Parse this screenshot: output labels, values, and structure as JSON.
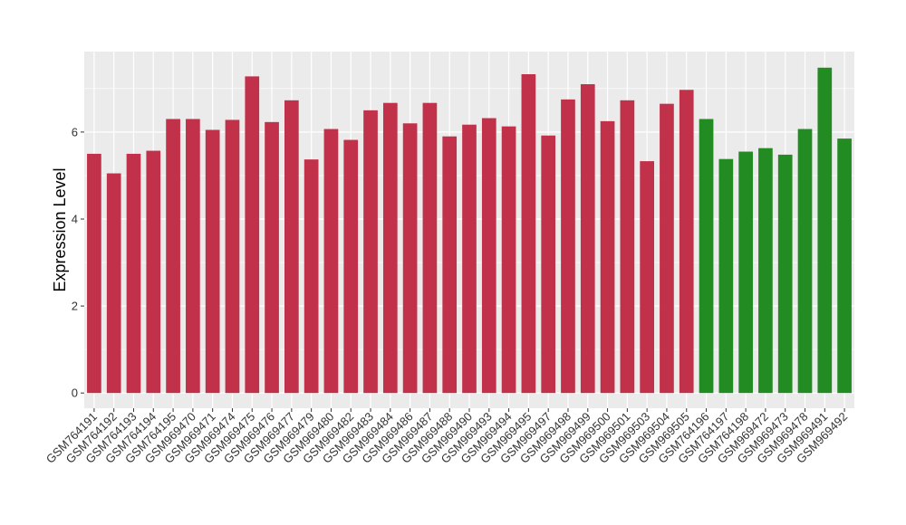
{
  "chart_data": {
    "type": "bar",
    "title": "",
    "xlabel": "",
    "ylabel": "Expression Level",
    "ylim": [
      -0.35,
      7.85
    ],
    "yticks": [
      0,
      2,
      4,
      6
    ],
    "grid": true,
    "legend": "none",
    "colors": {
      "group1": "#C1314A",
      "group2": "#228B22",
      "panel": "#EBEBEB",
      "grid": "#FFFFFF"
    },
    "categories": [
      "GSM764191",
      "GSM764192",
      "GSM764193",
      "GSM764194",
      "GSM764195",
      "GSM969470",
      "GSM969471",
      "GSM969474",
      "GSM969475",
      "GSM969476",
      "GSM969477",
      "GSM969479",
      "GSM969480",
      "GSM969482",
      "GSM969483",
      "GSM969484",
      "GSM969486",
      "GSM969487",
      "GSM969488",
      "GSM969490",
      "GSM969493",
      "GSM969494",
      "GSM969495",
      "GSM969497",
      "GSM969498",
      "GSM969499",
      "GSM969500",
      "GSM969501",
      "GSM969503",
      "GSM969504",
      "GSM969505",
      "GSM764196",
      "GSM764197",
      "GSM764198",
      "GSM969472",
      "GSM969473",
      "GSM969478",
      "GSM969491",
      "GSM969492"
    ],
    "values": [
      5.5,
      5.05,
      5.5,
      5.57,
      6.3,
      6.3,
      6.05,
      6.28,
      7.28,
      6.23,
      6.73,
      5.37,
      6.07,
      5.82,
      6.5,
      6.67,
      6.2,
      6.67,
      5.9,
      6.17,
      6.32,
      6.13,
      7.33,
      5.92,
      6.75,
      7.1,
      6.25,
      6.73,
      5.33,
      6.65,
      6.97,
      6.3,
      5.38,
      5.55,
      5.63,
      5.48,
      6.07,
      7.48,
      5.85
    ],
    "groups": [
      "group1",
      "group1",
      "group1",
      "group1",
      "group1",
      "group1",
      "group1",
      "group1",
      "group1",
      "group1",
      "group1",
      "group1",
      "group1",
      "group1",
      "group1",
      "group1",
      "group1",
      "group1",
      "group1",
      "group1",
      "group1",
      "group1",
      "group1",
      "group1",
      "group1",
      "group1",
      "group1",
      "group1",
      "group1",
      "group1",
      "group1",
      "group2",
      "group2",
      "group2",
      "group2",
      "group2",
      "group2",
      "group2",
      "group2"
    ]
  }
}
